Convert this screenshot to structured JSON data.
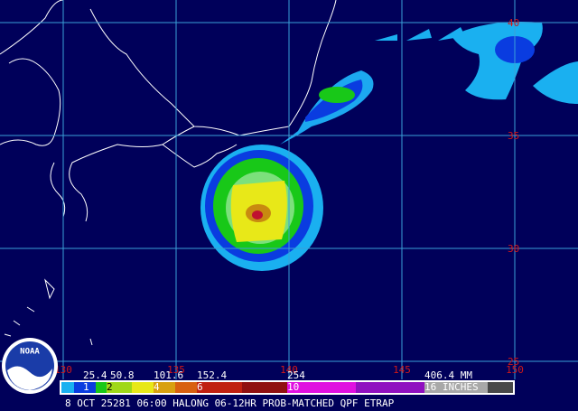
{
  "map": {
    "lat_labels": [
      "40",
      "35",
      "30",
      "25"
    ],
    "lon_labels": [
      "130",
      "135",
      "140",
      "145",
      "150"
    ],
    "legend": {
      "mm_labels": [
        "25.4",
        "50.8",
        "101.6",
        "152.4",
        "254",
        "406.4 MM"
      ],
      "inch_labels": [
        "1",
        "2",
        "4",
        "6",
        "10",
        "16 INCHES"
      ]
    },
    "caption": "8 OCT 25281 06:00 HALONG 06-12HR PROB-MATCHED QPF ETRAP",
    "logo": "NOAA"
  }
}
